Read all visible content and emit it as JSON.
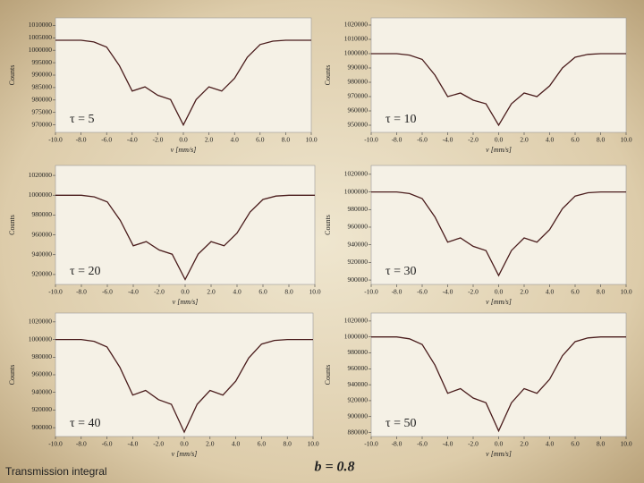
{
  "chart_data": [
    {
      "type": "line",
      "annotation": "τ = 5",
      "xlabel": "v [mm/s]",
      "ylabel": "Counts",
      "x": [
        -10,
        -9,
        -8,
        -7,
        -6,
        -5,
        -4,
        -3,
        -2,
        -1,
        0,
        1,
        2,
        3,
        4,
        5,
        6,
        7,
        8,
        9,
        10
      ],
      "series": [
        {
          "color": "#4a1c1c",
          "values": [
            1004000,
            1004000,
            1004000,
            1003320,
            1001280,
            993800,
            983600,
            985300,
            981900,
            980200,
            970000,
            980200,
            985300,
            983600,
            988700,
            997200,
            1002300,
            1003660,
            1004000,
            1004000,
            1004000
          ]
        }
      ],
      "xlim": [
        -10,
        10
      ],
      "xticks": [
        {
          "value": -10,
          "label": "-10.0"
        },
        {
          "value": -8,
          "label": "-8.0"
        },
        {
          "value": -6,
          "label": "-6.0"
        },
        {
          "value": -4,
          "label": "-4.0"
        },
        {
          "value": -2,
          "label": "-2.0"
        },
        {
          "value": 0,
          "label": "0.0"
        },
        {
          "value": 2,
          "label": "2.0"
        },
        {
          "value": 4,
          "label": "4.0"
        },
        {
          "value": 6,
          "label": "6.0"
        },
        {
          "value": 8,
          "label": "8.0"
        },
        {
          "value": 10,
          "label": "10.0"
        }
      ],
      "ylim": [
        967000,
        1013000
      ],
      "yticks": [
        970000,
        975000,
        980000,
        985000,
        990000,
        995000,
        1000000,
        1005000,
        1010000
      ]
    },
    {
      "type": "line",
      "annotation": "τ = 10",
      "xlabel": "v [mm/s]",
      "ylabel": "Counts",
      "x": [
        -10,
        -9,
        -8,
        -7,
        -6,
        -5,
        -4,
        -3,
        -2,
        -1,
        0,
        1,
        2,
        3,
        4,
        5,
        6,
        7,
        8,
        9,
        10
      ],
      "series": [
        {
          "color": "#4a1c1c",
          "values": [
            1000000,
            1000000,
            1000000,
            999000,
            996000,
            985000,
            970000,
            972500,
            967500,
            965000,
            950000,
            965000,
            972500,
            970000,
            977500,
            990000,
            997500,
            999500,
            1000000,
            1000000,
            1000000
          ]
        }
      ],
      "xlim": [
        -10,
        10
      ],
      "xticks": [
        {
          "value": -10,
          "label": "-10.0"
        },
        {
          "value": -8,
          "label": "-8.0"
        },
        {
          "value": -6,
          "label": "-6.0"
        },
        {
          "value": -4,
          "label": "-4.0"
        },
        {
          "value": -2,
          "label": "-2.0"
        },
        {
          "value": 0,
          "label": "0.0"
        },
        {
          "value": 2,
          "label": "2.0"
        },
        {
          "value": 4,
          "label": "4.0"
        },
        {
          "value": 6,
          "label": "6.0"
        },
        {
          "value": 8,
          "label": "8.0"
        },
        {
          "value": 10,
          "label": "10.0"
        }
      ],
      "ylim": [
        945000,
        1025000
      ],
      "yticks": [
        950000,
        960000,
        970000,
        980000,
        990000,
        1000000,
        1010000,
        1020000
      ]
    },
    {
      "type": "line",
      "annotation": "τ = 20",
      "xlabel": "v [mm/s]",
      "ylabel": "Counts",
      "x": [
        -10,
        -9,
        -8,
        -7,
        -6,
        -5,
        -4,
        -3,
        -2,
        -1,
        0,
        1,
        2,
        3,
        4,
        5,
        6,
        7,
        8,
        9,
        10
      ],
      "series": [
        {
          "color": "#4a1c1c",
          "values": [
            1000000,
            1000000,
            1000000,
            998300,
            993200,
            974500,
            949000,
            953250,
            944750,
            940500,
            915000,
            940500,
            953250,
            949000,
            961750,
            983000,
            995750,
            999150,
            1000000,
            1000000,
            1000000
          ]
        }
      ],
      "xlim": [
        -10,
        10
      ],
      "xticks": [
        {
          "value": -10,
          "label": "-10.0"
        },
        {
          "value": -8,
          "label": "-8.0"
        },
        {
          "value": -6,
          "label": "-6.0"
        },
        {
          "value": -4,
          "label": "-4.0"
        },
        {
          "value": -2,
          "label": "-2.0"
        },
        {
          "value": 0,
          "label": "0.0"
        },
        {
          "value": 2,
          "label": "2.0"
        },
        {
          "value": 4,
          "label": "4.0"
        },
        {
          "value": 6,
          "label": "6.0"
        },
        {
          "value": 8,
          "label": "8.0"
        },
        {
          "value": 10,
          "label": "10.0"
        }
      ],
      "ylim": [
        910000,
        1030000
      ],
      "yticks": [
        920000,
        940000,
        960000,
        980000,
        1000000,
        1020000
      ]
    },
    {
      "type": "line",
      "annotation": "τ = 30",
      "xlabel": "v [mm/s]",
      "ylabel": "Counts",
      "x": [
        -10,
        -9,
        -8,
        -7,
        -6,
        -5,
        -4,
        -3,
        -2,
        -1,
        0,
        1,
        2,
        3,
        4,
        5,
        6,
        7,
        8,
        9,
        10
      ],
      "series": [
        {
          "color": "#4a1c1c",
          "values": [
            1000000,
            1000000,
            1000000,
            998100,
            992400,
            971500,
            943000,
            947750,
            938250,
            933500,
            905000,
            933500,
            947750,
            943000,
            957250,
            981000,
            995250,
            999050,
            1000000,
            1000000,
            1000000
          ]
        }
      ],
      "xlim": [
        -10,
        10
      ],
      "xticks": [
        {
          "value": -10,
          "label": "-10.0"
        },
        {
          "value": -8,
          "label": "-8.0"
        },
        {
          "value": -6,
          "label": "-6.0"
        },
        {
          "value": -4,
          "label": "-4.0"
        },
        {
          "value": -2,
          "label": "-2.0"
        },
        {
          "value": 0,
          "label": "0.0"
        },
        {
          "value": 2,
          "label": "2.0"
        },
        {
          "value": 4,
          "label": "4.0"
        },
        {
          "value": 6,
          "label": "6.0"
        },
        {
          "value": 8,
          "label": "8.0"
        },
        {
          "value": 10,
          "label": "10.0"
        }
      ],
      "ylim": [
        895000,
        1030000
      ],
      "yticks": [
        900000,
        920000,
        940000,
        960000,
        980000,
        1000000,
        1020000
      ]
    },
    {
      "type": "line",
      "annotation": "τ = 40",
      "xlabel": "v [mm/s]",
      "ylabel": "Counts",
      "x": [
        -10,
        -9,
        -8,
        -7,
        -6,
        -5,
        -4,
        -3,
        -2,
        -1,
        0,
        1,
        2,
        3,
        4,
        5,
        6,
        7,
        8,
        9,
        10
      ],
      "series": [
        {
          "color": "#4a1c1c",
          "values": [
            1000000,
            1000000,
            1000000,
            997900,
            991600,
            968500,
            937000,
            942250,
            931750,
            926500,
            895000,
            926500,
            942250,
            937000,
            952750,
            979000,
            994750,
            998950,
            1000000,
            1000000,
            1000000
          ]
        }
      ],
      "xlim": [
        -10,
        10
      ],
      "xticks": [
        {
          "value": -10,
          "label": "-10.0"
        },
        {
          "value": -8,
          "label": "-8.0"
        },
        {
          "value": -6,
          "label": "-6.0"
        },
        {
          "value": -4,
          "label": "-4.0"
        },
        {
          "value": -2,
          "label": "-2.0"
        },
        {
          "value": 0,
          "label": "0.0"
        },
        {
          "value": 2,
          "label": "2.0"
        },
        {
          "value": 4,
          "label": "4.0"
        },
        {
          "value": 6,
          "label": "6.0"
        },
        {
          "value": 8,
          "label": "8.0"
        },
        {
          "value": 10,
          "label": "10.0"
        }
      ],
      "ylim": [
        890000,
        1030000
      ],
      "yticks": [
        900000,
        920000,
        940000,
        960000,
        980000,
        1000000,
        1020000
      ]
    },
    {
      "type": "line",
      "annotation": "τ = 50",
      "xlabel": "v [mm/s]",
      "ylabel": "Counts",
      "x": [
        -10,
        -9,
        -8,
        -7,
        -6,
        -5,
        -4,
        -3,
        -2,
        -1,
        0,
        1,
        2,
        3,
        4,
        5,
        6,
        7,
        8,
        9,
        10
      ],
      "series": [
        {
          "color": "#4a1c1c",
          "values": [
            1000000,
            1000000,
            1000000,
            997640,
            990560,
            964600,
            929200,
            935100,
            923300,
            917400,
            882000,
            917400,
            935100,
            929200,
            946900,
            976400,
            994100,
            998820,
            1000000,
            1000000,
            1000000
          ]
        }
      ],
      "xlim": [
        -10,
        10
      ],
      "xticks": [
        {
          "value": -10,
          "label": "-10.0"
        },
        {
          "value": -8,
          "label": "-8.0"
        },
        {
          "value": -6,
          "label": "-6.0"
        },
        {
          "value": -4,
          "label": "-4.0"
        },
        {
          "value": -2,
          "label": "-2.0"
        },
        {
          "value": 0,
          "label": "0.0"
        },
        {
          "value": 2,
          "label": "2.0"
        },
        {
          "value": 4,
          "label": "4.0"
        },
        {
          "value": 6,
          "label": "6.0"
        },
        {
          "value": 8,
          "label": "8.0"
        },
        {
          "value": 10,
          "label": "10.0"
        }
      ],
      "ylim": [
        875000,
        1030000
      ],
      "yticks": [
        880000,
        900000,
        920000,
        940000,
        960000,
        980000,
        1000000,
        1020000
      ]
    }
  ],
  "footer": {
    "left": "Transmission integral",
    "center": "b = 0.8"
  }
}
